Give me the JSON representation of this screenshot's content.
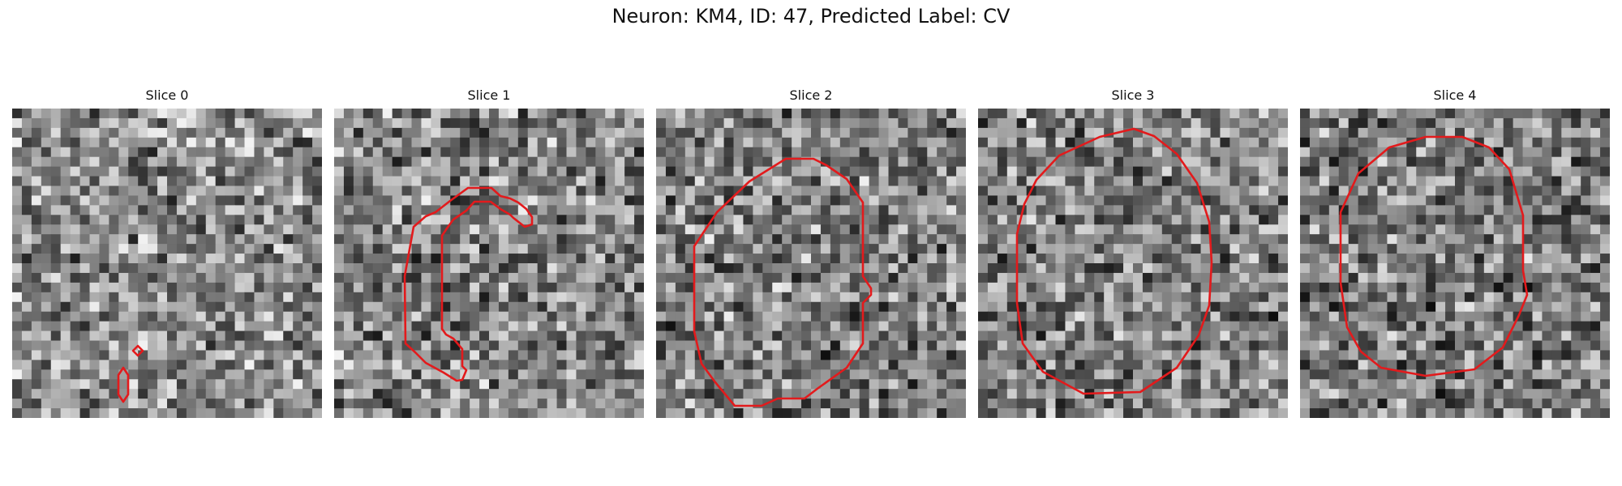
{
  "figure": {
    "title": "Neuron: KM4, ID: 47, Predicted Label: CV"
  },
  "contour_color": "#e31a1c",
  "panels": [
    {
      "title": "Slice 0"
    },
    {
      "title": "Slice 1"
    },
    {
      "title": "Slice 2"
    },
    {
      "title": "Slice 3"
    },
    {
      "title": "Slice 4"
    }
  ]
}
